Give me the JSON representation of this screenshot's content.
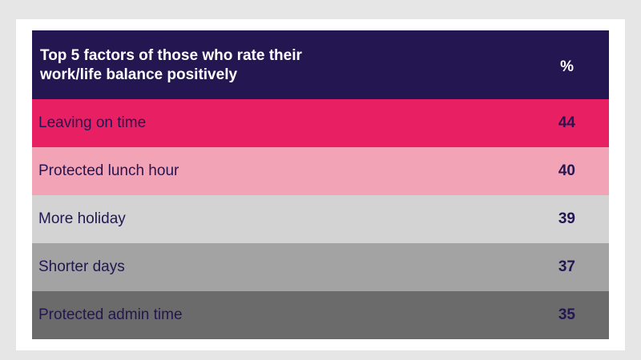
{
  "chart_data": {
    "type": "table",
    "title": "Top 5 factors of those who rate their work/life balance positively",
    "title_lines": [
      "Top 5 factors of those who rate their",
      "work/life balance positively"
    ],
    "value_header": "%",
    "categories": [
      "Leaving on time",
      "Protected lunch hour",
      "More holiday",
      "Shorter days",
      "Protected admin time"
    ],
    "values": [
      44,
      40,
      39,
      37,
      35
    ],
    "row_colors": [
      "#e91f63",
      "#f3a3b6",
      "#d3d3d3",
      "#a3a3a3",
      "#6b6b6b"
    ],
    "header_color": "#231651",
    "text_color": "#231651"
  }
}
